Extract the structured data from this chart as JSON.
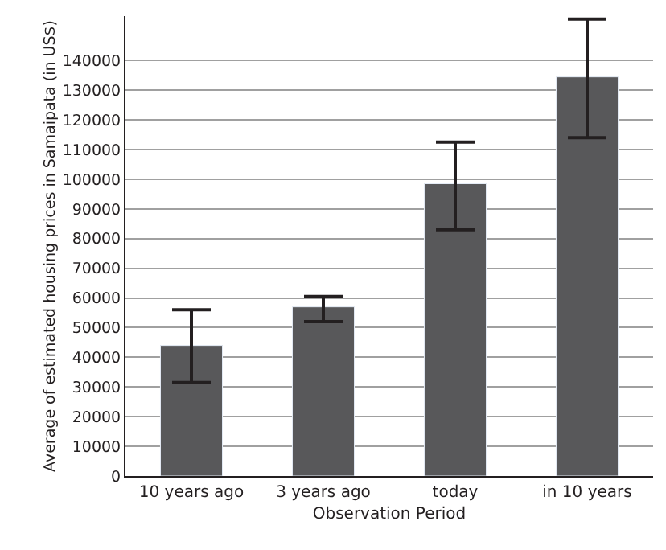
{
  "chart_data": {
    "type": "bar",
    "xlabel": "Observation Period",
    "ylabel": "Average of estimated housing prices in Samaipata (in US$)",
    "categories": [
      "10 years ago",
      "3 years ago",
      "today",
      "in 10 years"
    ],
    "values": [
      44000,
      57000,
      98500,
      134500
    ],
    "errors": [
      [
        31500,
        56000
      ],
      [
        52000,
        60500
      ],
      [
        83000,
        112500
      ],
      [
        114000,
        154000
      ]
    ],
    "color": "#58585a",
    "ylim": [
      0,
      155000
    ],
    "yticks": [
      0,
      10000,
      20000,
      30000,
      40000,
      50000,
      60000,
      70000,
      80000,
      90000,
      100000,
      110000,
      120000,
      130000,
      140000
    ],
    "grid": "y",
    "legend": false
  }
}
